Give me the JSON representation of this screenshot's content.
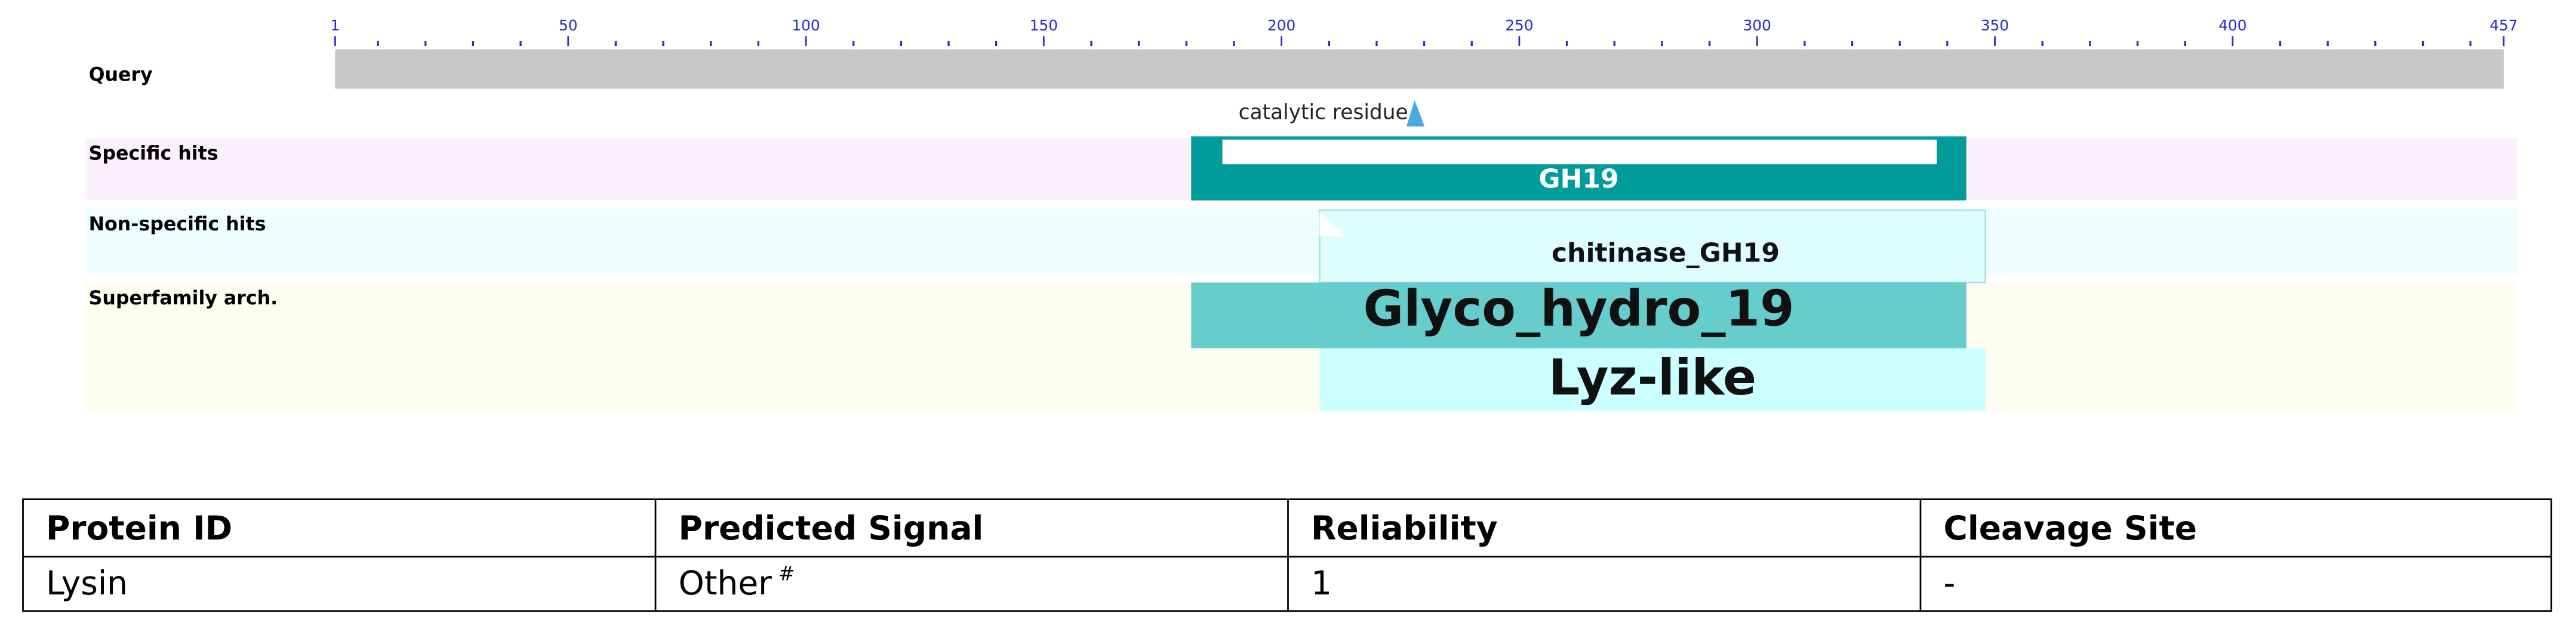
{
  "ruler": {
    "xlim": [
      1,
      457
    ],
    "ticks": [
      1,
      50,
      100,
      150,
      200,
      250,
      300,
      350,
      400,
      457
    ],
    "minor_ticks": [
      10,
      20,
      30,
      40,
      60,
      70,
      80,
      90,
      110,
      120,
      130,
      140,
      160,
      170,
      180,
      190,
      210,
      220,
      230,
      240,
      260,
      270,
      280,
      290,
      310,
      320,
      330,
      340,
      360,
      370,
      380,
      390,
      410,
      420,
      430,
      440,
      450
    ],
    "color": "#2a2ad0"
  },
  "query": {
    "label": "Query",
    "color": "#c8c8c8"
  },
  "catalytic_residue": {
    "label": "catalytic residue",
    "position": 228,
    "color": "#4aa8e0"
  },
  "rows": [
    {
      "label": "Specific hits",
      "background": "#fdf0fd",
      "domains": [
        {
          "name": "GH19",
          "start": 181,
          "end": 344,
          "color": "#009b9b"
        }
      ]
    },
    {
      "label": "Non-specific hits",
      "background": "#effefe",
      "domains": [
        {
          "name": "chitinase_GH19",
          "start": 208,
          "end": 348,
          "color": "#dffdfd"
        }
      ]
    },
    {
      "label": "Superfamily arch.",
      "background": "#fefef0",
      "domains": [
        {
          "name": "Glyco_hydro_19",
          "start": 181,
          "end": 344,
          "color": "#66cccc"
        },
        {
          "name": "Lyz-like",
          "start": 208,
          "end": 348,
          "color": "#ccffff"
        }
      ]
    }
  ],
  "table": {
    "header": [
      "Protein ID",
      "Predicted Signal",
      "Reliability",
      "Cleavage Site"
    ],
    "rows": [
      [
        "Lysin",
        {
          "text": "Other",
          "superscript": "#"
        },
        "1",
        "-"
      ]
    ]
  }
}
